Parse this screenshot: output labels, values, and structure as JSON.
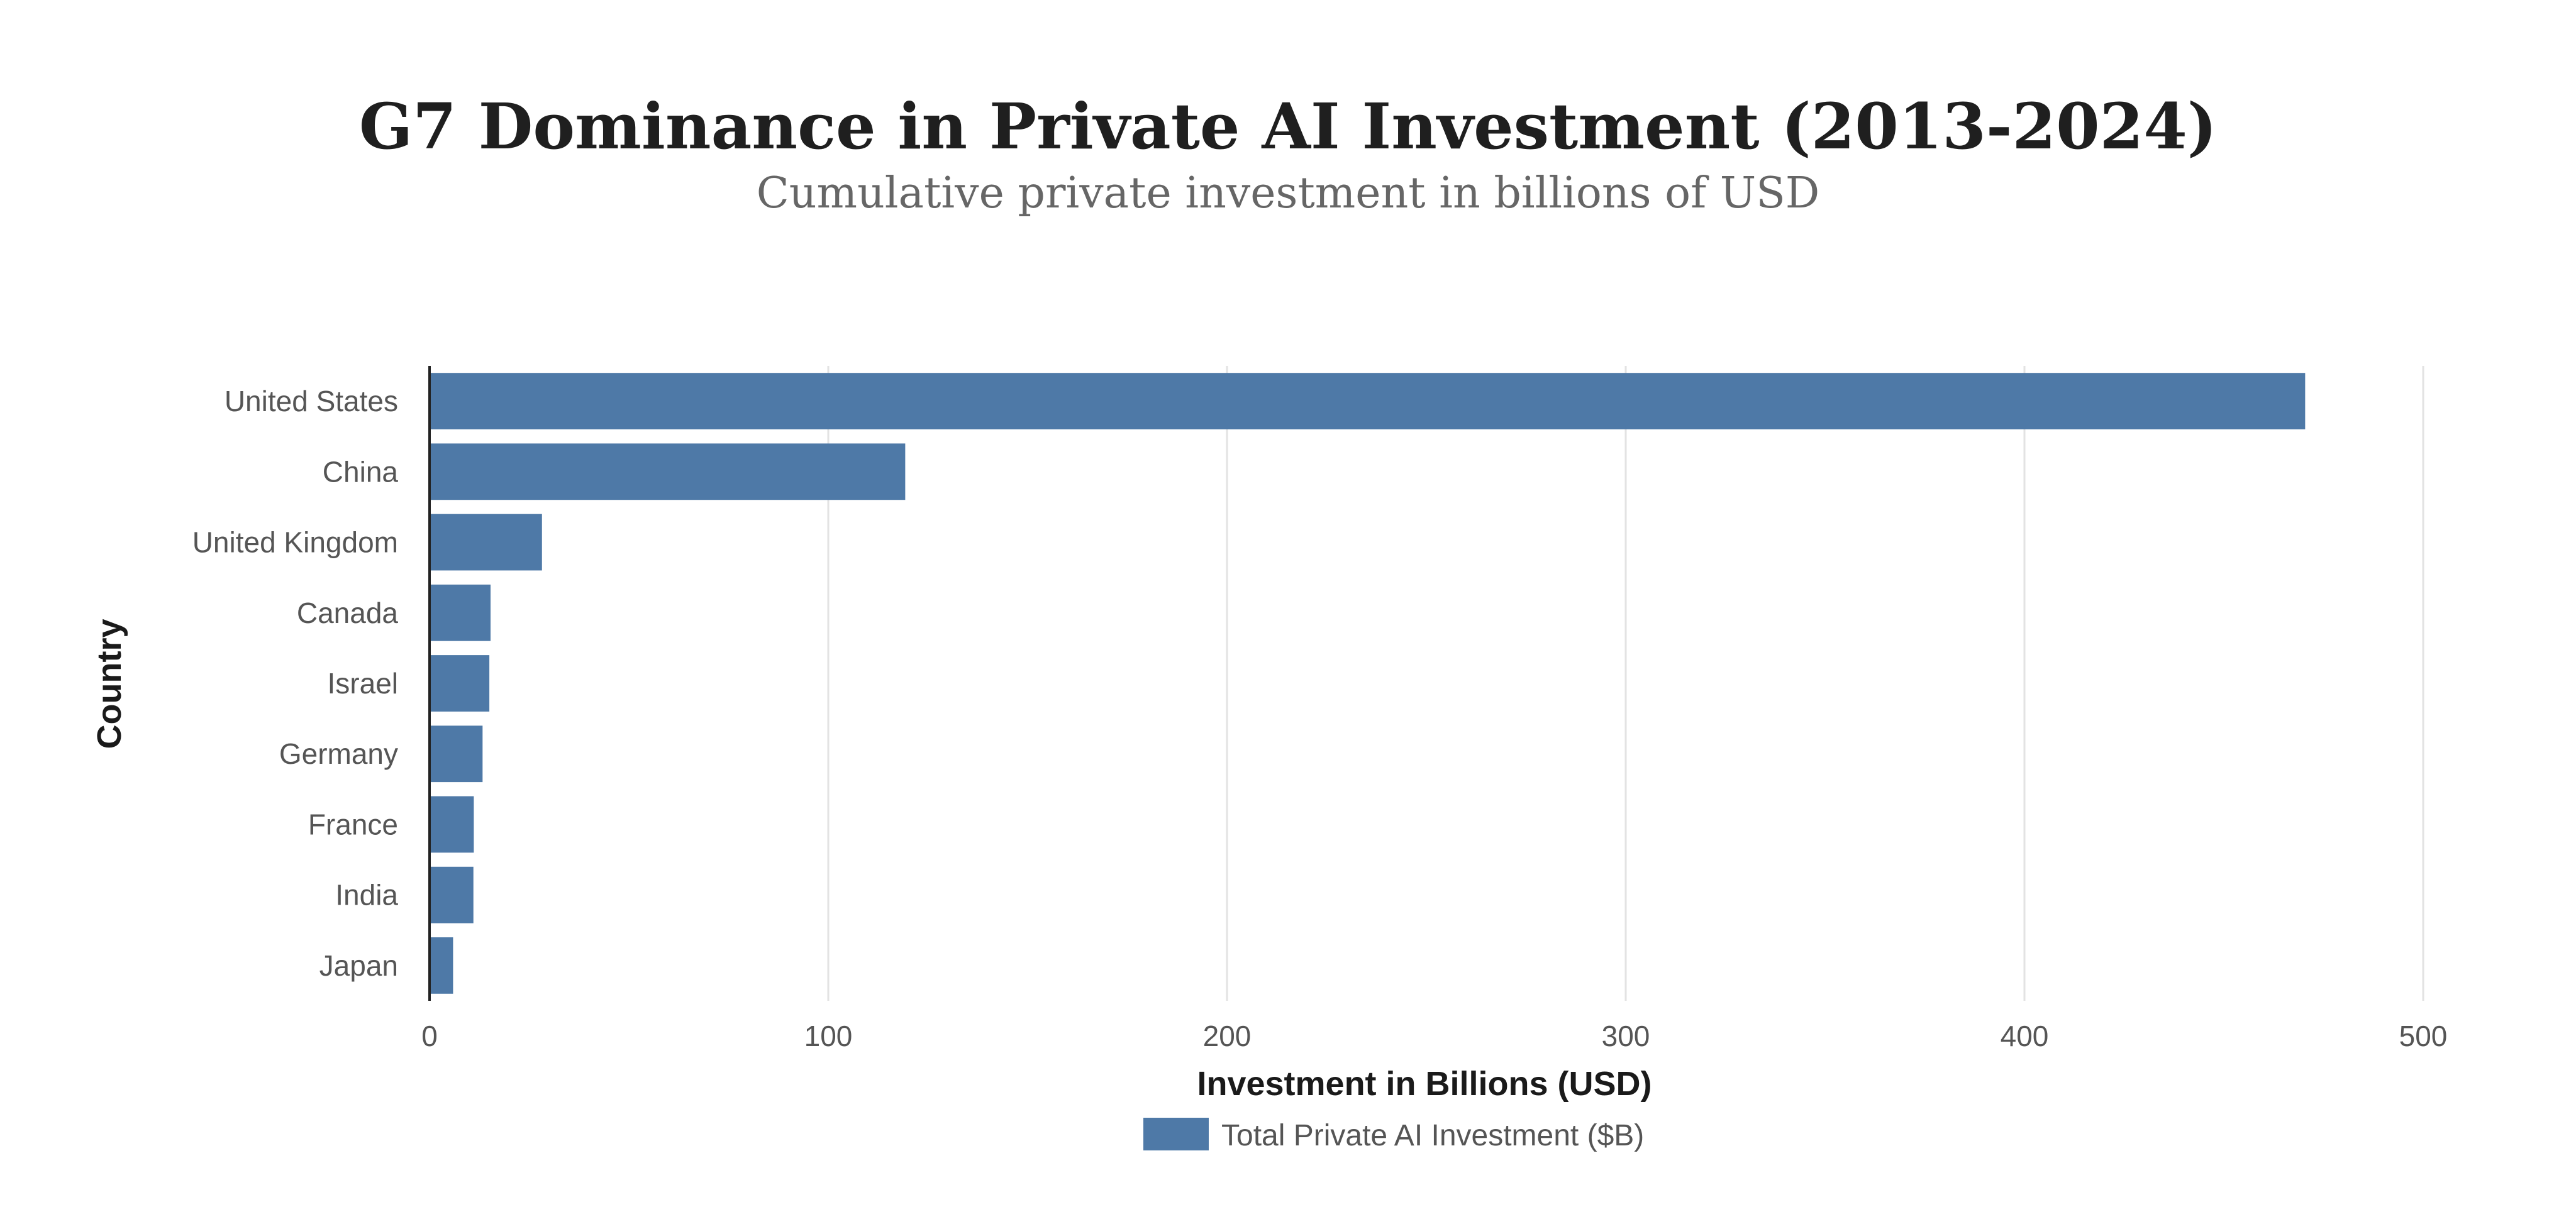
{
  "chart_data": {
    "type": "bar",
    "orientation": "horizontal",
    "title": "G7 Dominance in Private AI Investment (2013-2024)",
    "subtitle": "Cumulative private investment in billions of USD",
    "xlabel": "Investment in Billions (USD)",
    "ylabel": "Country",
    "xlim": [
      0,
      500
    ],
    "xticks": [
      0,
      100,
      200,
      300,
      400,
      500
    ],
    "grid": true,
    "legend_position": "bottom-center",
    "categories": [
      "United States",
      "China",
      "United Kingdom",
      "Canada",
      "Israel",
      "Germany",
      "France",
      "India",
      "Japan"
    ],
    "series": [
      {
        "name": "Total Private AI Investment ($B)",
        "color": "#4e79a7",
        "values": [
          470.4,
          119.3,
          28.2,
          15.3,
          15.0,
          13.3,
          11.1,
          11.0,
          5.9
        ]
      }
    ]
  }
}
